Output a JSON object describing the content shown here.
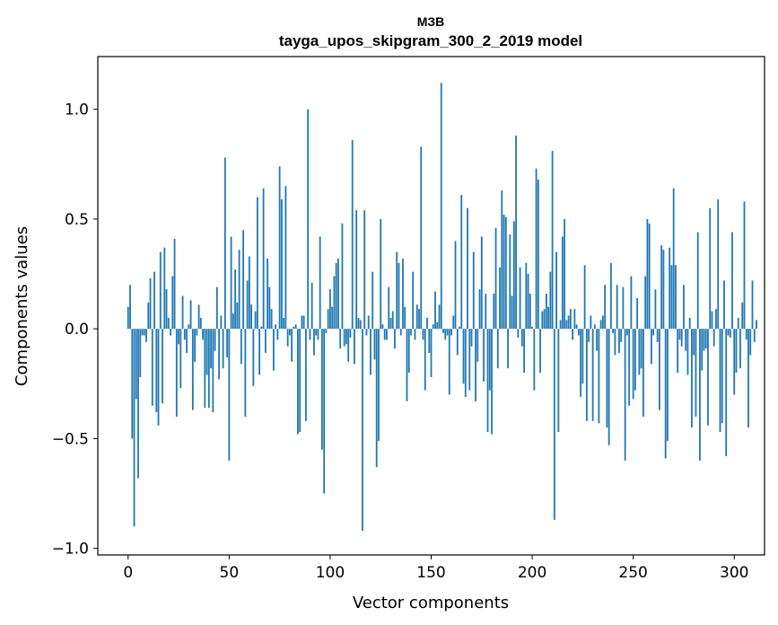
{
  "chart_data": {
    "type": "bar",
    "title_line1": "МЗВ",
    "title_line2": "tayga_upos_skipgram_300_2_2019 model",
    "xlabel": "Vector components",
    "ylabel": "Components values",
    "xlim": [
      -15,
      315
    ],
    "ylim": [
      -1.03,
      1.24
    ],
    "xticks": [
      0,
      50,
      100,
      150,
      200,
      250,
      300
    ],
    "xtick_labels": [
      "0",
      "50",
      "100",
      "150",
      "200",
      "250",
      "300"
    ],
    "yticks": [
      -1.0,
      -0.5,
      0.0,
      0.5,
      1.0
    ],
    "ytick_labels": [
      "−1.0",
      "−0.5",
      "0.0",
      "0.5",
      "1.0"
    ],
    "bar_color": "#1f77b4",
    "values": [
      0.1,
      0.2,
      -0.5,
      -0.9,
      -0.32,
      -0.68,
      -0.22,
      -0.03,
      -0.03,
      -0.06,
      0.12,
      0.23,
      -0.35,
      0.26,
      -0.38,
      -0.44,
      0.35,
      -0.34,
      0.37,
      0.18,
      0.05,
      -0.03,
      0.24,
      0.41,
      -0.4,
      -0.07,
      -0.27,
      0.15,
      -0.05,
      -0.11,
      0.02,
      0.13,
      -0.37,
      -0.15,
      -0.03,
      0.11,
      0.05,
      -0.05,
      -0.36,
      -0.21,
      -0.36,
      -0.18,
      -0.38,
      -0.1,
      0.19,
      -0.23,
      0.06,
      -0.18,
      0.78,
      -0.13,
      -0.6,
      0.42,
      0.07,
      0.27,
      0.12,
      0.36,
      -0.16,
      0.45,
      -0.4,
      0.22,
      0.33,
      0.11,
      -0.26,
      0.08,
      0.6,
      -0.21,
      0.01,
      0.64,
      -0.11,
      0.32,
      0.19,
      0.09,
      -0.19,
      0.02,
      -0.05,
      0.74,
      0.59,
      0.05,
      0.65,
      -0.08,
      -0.03,
      -0.15,
      0.01,
      0.02,
      -0.48,
      -0.47,
      0.06,
      0.06,
      -0.42,
      1.0,
      -0.05,
      0.21,
      -0.12,
      -0.03,
      -0.05,
      0.42,
      -0.55,
      -0.75,
      -0.02,
      0.09,
      0.18,
      0.1,
      0.24,
      0.3,
      0.32,
      -0.09,
      0.48,
      -0.08,
      -0.07,
      -0.15,
      -0.04,
      0.86,
      -0.16,
      0.54,
      0.05,
      0.04,
      -0.92,
      0.54,
      -0.03,
      0.06,
      -0.21,
      0.26,
      -0.14,
      -0.63,
      -0.51,
      0.5,
      0.02,
      -0.05,
      -0.05,
      0.19,
      0.05,
      0.08,
      -0.09,
      0.35,
      0.3,
      -0.03,
      0.32,
      0.1,
      -0.33,
      -0.2,
      -0.03,
      0.26,
      -0.05,
      0.11,
      0.09,
      0.83,
      -0.05,
      -0.28,
      0.05,
      -0.11,
      -0.22,
      0.02,
      0.17,
      0.03,
      0.11,
      1.12,
      -0.02,
      -0.05,
      -0.03,
      -0.3,
      -0.03,
      0.06,
      0.4,
      -0.12,
      0.01,
      0.61,
      -0.25,
      -0.31,
      0.55,
      -0.28,
      -0.08,
      0.35,
      -0.33,
      -0.15,
      0.18,
      0.42,
      -0.24,
      0.16,
      -0.47,
      -0.28,
      -0.48,
      0.16,
      0.46,
      -0.18,
      0.28,
      0.63,
      0.52,
      0.51,
      -0.18,
      0.43,
      0.15,
      0.49,
      0.88,
      -0.04,
      0.28,
      -0.08,
      -0.2,
      0.3,
      0.25,
      0.16,
      0.01,
      -0.28,
      0.73,
      0.68,
      -0.2,
      0.08,
      0.09,
      0.16,
      0.1,
      0.26,
      0.81,
      -0.87,
      0.35,
      -0.47,
      0.04,
      0.42,
      0.5,
      0.04,
      0.06,
      0.09,
      -0.05,
      0.09,
      0.02,
      -0.03,
      -0.31,
      -0.25,
      0.29,
      -0.42,
      -0.06,
      0.06,
      -0.42,
      0.02,
      -0.1,
      -0.43,
      0.04,
      0.06,
      0.2,
      -0.45,
      -0.53,
      0.3,
      -0.02,
      -0.12,
      0.2,
      -0.11,
      -0.06,
      0.19,
      -0.6,
      -0.03,
      -0.35,
      0.24,
      -0.32,
      -0.28,
      0.14,
      -0.21,
      -0.18,
      -0.4,
      0.24,
      0.5,
      0.48,
      -0.16,
      -0.03,
      0.18,
      -0.06,
      -0.37,
      0.38,
      0.36,
      -0.59,
      -0.51,
      0.37,
      0.29,
      0.64,
      0.29,
      -0.2,
      -0.05,
      -0.08,
      0.2,
      -0.1,
      -0.21,
      0.05,
      -0.45,
      -0.12,
      -0.4,
      0.44,
      -0.6,
      -0.19,
      -0.1,
      -0.09,
      -0.44,
      0.55,
      0.08,
      -0.08,
      0.09,
      0.59,
      -0.47,
      -0.43,
      0.22,
      -0.58,
      -0.03,
      -0.04,
      0.44,
      -0.3,
      -0.2,
      0.05,
      -0.18,
      0.12,
      0.58,
      -0.05,
      -0.45,
      -0.12,
      0.22,
      -0.06,
      0.04
    ]
  }
}
